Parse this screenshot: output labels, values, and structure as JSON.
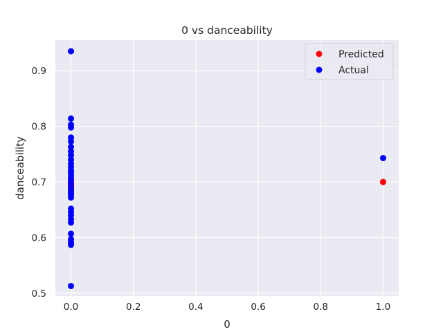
{
  "chart_data": {
    "type": "scatter",
    "title": "0 vs danceability",
    "xlabel": "0",
    "ylabel": "danceability",
    "xlim": [
      -0.05,
      1.05
    ],
    "ylim": [
      0.495,
      0.955
    ],
    "xticks": [
      "0.0",
      "0.2",
      "0.4",
      "0.6",
      "0.8",
      "1.0"
    ],
    "yticks": [
      "0.5",
      "0.6",
      "0.7",
      "0.8",
      "0.9"
    ],
    "grid": true,
    "legend_position": "top-right",
    "series": [
      {
        "name": "Predicted",
        "color": "#ff0000",
        "points": [
          [
            0,
            0.685
          ],
          [
            0,
            0.688
          ],
          [
            0,
            0.69
          ],
          [
            0,
            0.692
          ],
          [
            0,
            0.694
          ],
          [
            0,
            0.696
          ],
          [
            0,
            0.698
          ],
          [
            0,
            0.7
          ],
          [
            0,
            0.702
          ],
          [
            0,
            0.704
          ],
          [
            1,
            0.7
          ]
        ]
      },
      {
        "name": "Actual",
        "color": "#0000ff",
        "points": [
          [
            0,
            0.935
          ],
          [
            0,
            0.814
          ],
          [
            0,
            0.803
          ],
          [
            0,
            0.798
          ],
          [
            0,
            0.78
          ],
          [
            0,
            0.773
          ],
          [
            0,
            0.763
          ],
          [
            0,
            0.755
          ],
          [
            0,
            0.748
          ],
          [
            0,
            0.74
          ],
          [
            0,
            0.733
          ],
          [
            0,
            0.727
          ],
          [
            0,
            0.721
          ],
          [
            0,
            0.716
          ],
          [
            0,
            0.711
          ],
          [
            0,
            0.706
          ],
          [
            0,
            0.699
          ],
          [
            0,
            0.692
          ],
          [
            0,
            0.686
          ],
          [
            0,
            0.681
          ],
          [
            0,
            0.677
          ],
          [
            0,
            0.672
          ],
          [
            0,
            0.652
          ],
          [
            0,
            0.646
          ],
          [
            0,
            0.64
          ],
          [
            0,
            0.633
          ],
          [
            0,
            0.627
          ],
          [
            0,
            0.607
          ],
          [
            0,
            0.597
          ],
          [
            0,
            0.592
          ],
          [
            0,
            0.587
          ],
          [
            0,
            0.513
          ],
          [
            1,
            0.743
          ]
        ]
      }
    ]
  }
}
